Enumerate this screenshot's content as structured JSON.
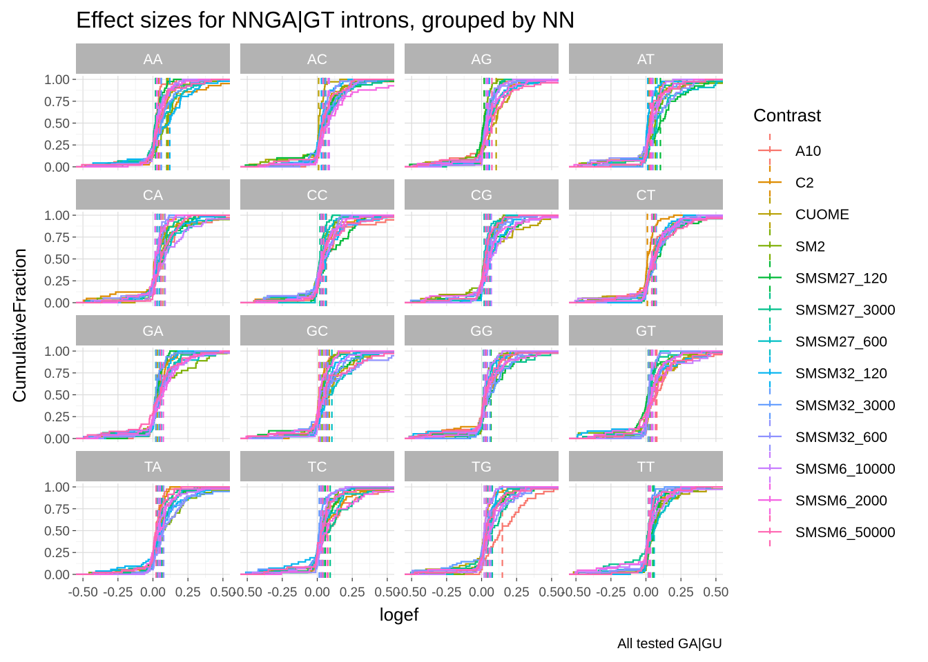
{
  "chart_data": {
    "type": "line",
    "subtype": "faceted ecdf (step)",
    "title": "Effect sizes for NNGA|GT introns, grouped by NN",
    "xlabel": "logef",
    "ylabel": "CumulativeFraction",
    "caption": "All tested GA|GU",
    "xlim": [
      -0.55,
      0.55
    ],
    "ylim": [
      -0.04,
      1.04
    ],
    "x_ticks": [
      -0.5,
      -0.25,
      0,
      0.25,
      0.5
    ],
    "x_tick_labels": [
      "-0.50",
      "-0.25",
      "0.00",
      "0.25",
      "0.50"
    ],
    "y_ticks": [
      0,
      0.25,
      0.5,
      0.75,
      1.0
    ],
    "y_tick_labels": [
      "0.00",
      "0.25",
      "0.50",
      "0.75",
      "1.00"
    ],
    "grid": true,
    "facet_layout": {
      "rows": 4,
      "cols": 4
    },
    "facets": [
      "AA",
      "AC",
      "AG",
      "AT",
      "CA",
      "CC",
      "CG",
      "CT",
      "GA",
      "GC",
      "GG",
      "GT",
      "TA",
      "TC",
      "TG",
      "TT"
    ],
    "legend": {
      "title": "Contrast",
      "position": "right",
      "entries": [
        "A10",
        "C2",
        "CUOME",
        "SM2",
        "SMSM27_120",
        "SMSM27_3000",
        "SMSM27_600",
        "SMSM32_120",
        "SMSM32_3000",
        "SMSM32_600",
        "SMSM6_10000",
        "SMSM6_2000",
        "SMSM6_50000"
      ]
    },
    "series_colors": [
      "#F8766D",
      "#DE8C00",
      "#B79F00",
      "#7CAE00",
      "#00BA38",
      "#00C08B",
      "#00BFC4",
      "#00B4F0",
      "#619CFF",
      "#8F91FF",
      "#C77CFF",
      "#F564E3",
      "#FF64B0"
    ],
    "median_lines": "dashed vertical line at each contrast's median logef (near 0.00)",
    "series_note": "Each facet shows one empirical cumulative distribution per contrast; curves rise steeply from ~0.05 to ~0.9 around logef = 0.00, then taper to 1.00 by ~0.3-0.5."
  }
}
